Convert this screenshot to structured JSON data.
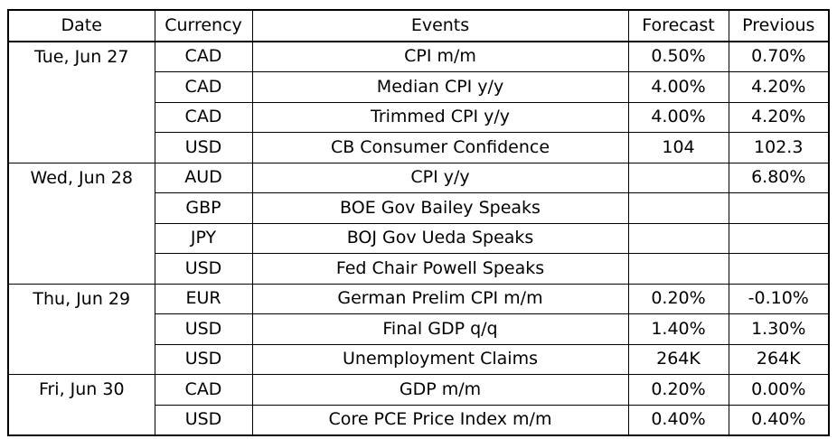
{
  "table": {
    "headers": [
      "Date",
      "Currency",
      "Events",
      "Forecast",
      "Previous"
    ],
    "rows": [
      {
        "date": "Tue, Jun 27",
        "currency": "CAD",
        "event": "CPI m/m",
        "forecast": "0.50%",
        "previous": "0.70%"
      },
      {
        "date": "",
        "currency": "CAD",
        "event": "Median CPI y/y",
        "forecast": "4.00%",
        "previous": "4.20%"
      },
      {
        "date": "",
        "currency": "CAD",
        "event": "Trimmed CPI y/y",
        "forecast": "4.00%",
        "previous": "4.20%"
      },
      {
        "date": "",
        "currency": "USD",
        "event": "CB Consumer Confidence",
        "forecast": "104",
        "previous": "102.3"
      },
      {
        "date": "Wed, Jun 28",
        "currency": "AUD",
        "event": "CPI y/y",
        "forecast": "",
        "previous": "6.80%"
      },
      {
        "date": "",
        "currency": "GBP",
        "event": "BOE Gov Bailey Speaks",
        "forecast": "",
        "previous": ""
      },
      {
        "date": "",
        "currency": "JPY",
        "event": "BOJ Gov Ueda Speaks",
        "forecast": "",
        "previous": ""
      },
      {
        "date": "",
        "currency": "USD",
        "event": "Fed Chair Powell Speaks",
        "forecast": "",
        "previous": ""
      },
      {
        "date": "Thu, Jun 29",
        "currency": "EUR",
        "event": "German Prelim CPI m/m",
        "forecast": "0.20%",
        "previous": "-0.10%"
      },
      {
        "date": "",
        "currency": "USD",
        "event": "Final GDP q/q",
        "forecast": "1.40%",
        "previous": "1.30%"
      },
      {
        "date": "",
        "currency": "USD",
        "event": "Unemployment Claims",
        "forecast": "264K",
        "previous": "264K"
      },
      {
        "date": "Fri, Jun 30",
        "currency": "CAD",
        "event": "GDP m/m",
        "forecast": "0.20%",
        "previous": "0.00%"
      },
      {
        "date": "",
        "currency": "USD",
        "event": "Core PCE Price Index m/m",
        "forecast": "0.40%",
        "previous": "0.40%"
      }
    ]
  }
}
